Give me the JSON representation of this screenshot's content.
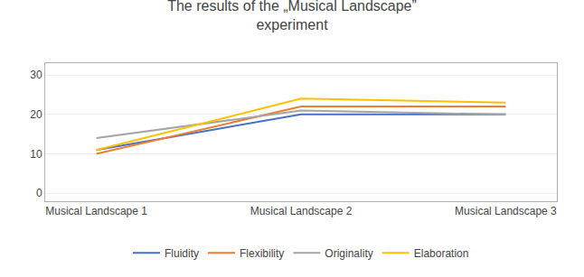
{
  "chart_data": {
    "type": "line",
    "title": "The results of the „Musical Landscape”\nexperiment",
    "categories": [
      "Musical Landscape 1",
      "Musical Landscape 2",
      "Musical Landscape 3"
    ],
    "series": [
      {
        "name": "Fluidity",
        "color": "#4472C4",
        "values": [
          11,
          20,
          20
        ]
      },
      {
        "name": "Flexibility",
        "color": "#ED7D31",
        "values": [
          10,
          22,
          22
        ]
      },
      {
        "name": "Originality",
        "color": "#A5A5A5",
        "values": [
          14,
          21,
          20
        ]
      },
      {
        "name": "Elaboration",
        "color": "#FFC000",
        "values": [
          11,
          24,
          23
        ]
      }
    ],
    "ylim": [
      -2,
      33
    ],
    "yticks": [
      0,
      10,
      20,
      30
    ],
    "grid": true,
    "legend": "bottom"
  }
}
